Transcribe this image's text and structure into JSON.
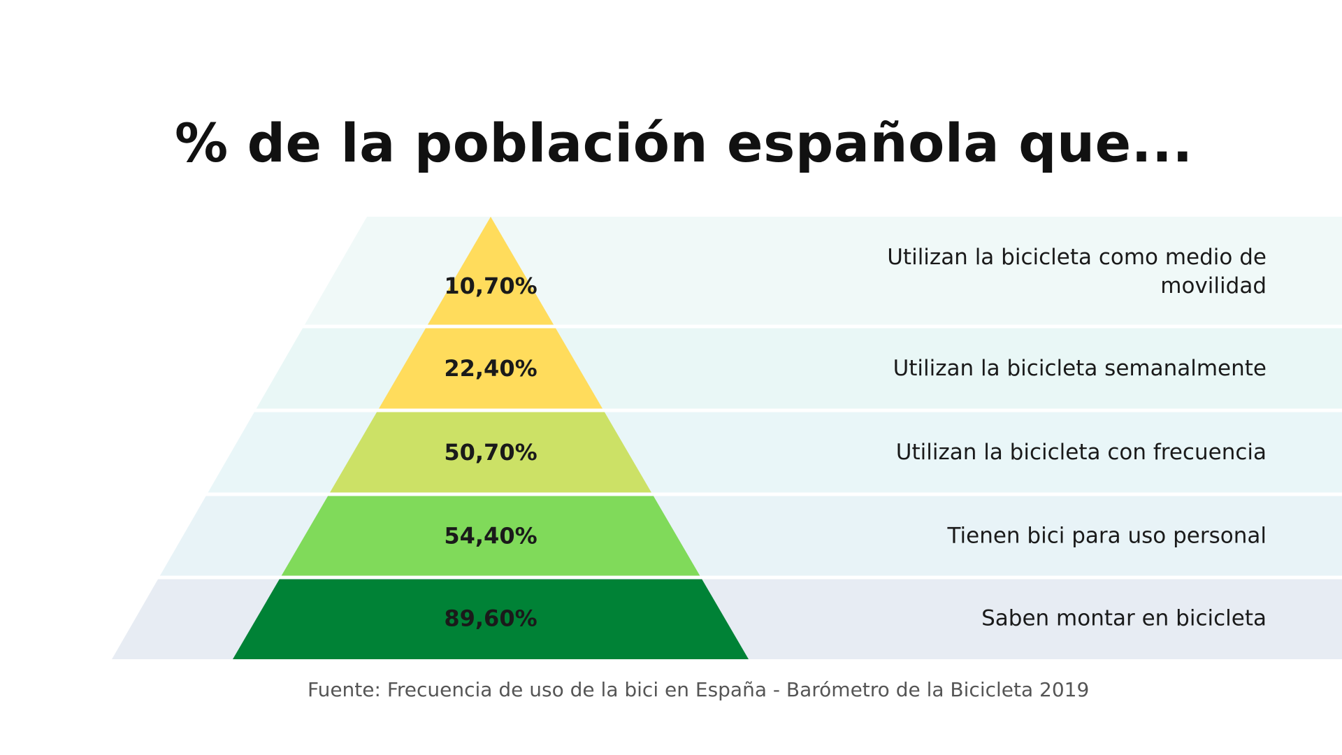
{
  "title": "% de la población española que...",
  "source": "Fuente: Frecuencia de uso de la bici en España - Barómetro de la Bicicleta 2019",
  "chart_data": {
    "type": "pyramid",
    "unit": "%",
    "levels": [
      {
        "value": 10.7,
        "display": "10,70%",
        "label_lines": [
          "Utilizan la bicicleta como medio de",
          "movilidad"
        ],
        "color": "#ffdc5c",
        "band_color": "#f0f9f8"
      },
      {
        "value": 22.4,
        "display": "22,40%",
        "label_lines": [
          "Utilizan la bicicleta semanalmente"
        ],
        "color": "#ffdc5c",
        "band_color": "#e9f7f6"
      },
      {
        "value": 50.7,
        "display": "50,70%",
        "label_lines": [
          "Utilizan la bicicleta con frecuencia"
        ],
        "color": "#cce166",
        "band_color": "#e9f6f8"
      },
      {
        "value": 54.4,
        "display": "54,40%",
        "label_lines": [
          "Tienen bici para uso personal"
        ],
        "color": "#80da5a",
        "band_color": "#e8f3f7"
      },
      {
        "value": 89.6,
        "display": "89,60%",
        "label_lines": [
          "Saben montar en bicicleta"
        ],
        "color": "#008236",
        "band_color": "#e7ecf3"
      }
    ]
  }
}
